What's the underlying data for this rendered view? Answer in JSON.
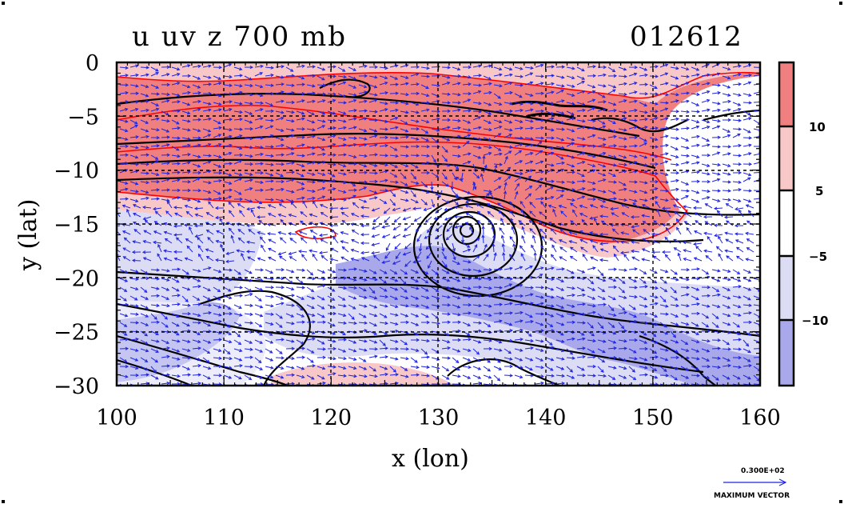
{
  "title": {
    "variables": "u uv z 700 mb",
    "time": "012612"
  },
  "axes": {
    "xlabel": "x (lon)",
    "ylabel": "y (lat)",
    "xlim": [
      100,
      160
    ],
    "ylim": [
      -30,
      0
    ],
    "xticks": [
      "100",
      "110",
      "120",
      "130",
      "140",
      "150",
      "160"
    ],
    "yticks": [
      "0",
      "−5",
      "−10",
      "−15",
      "−20",
      "−25",
      "−30"
    ],
    "grid": "dashed"
  },
  "colorbar": {
    "ticks": [
      "10",
      "5",
      "−5",
      "−10"
    ],
    "colors": [
      "#f08080",
      "#f8c8c8",
      "#ffffff",
      "#dcdcf5",
      "#a8a8ea"
    ]
  },
  "reference_vector": {
    "value": "0.300E+02",
    "label": "MAXIMUM VECTOR"
  },
  "colors": {
    "strong_positive": "#f08080",
    "weak_positive": "#f8c8c8",
    "weak_negative": "#dcdcf5",
    "strong_negative": "#a8a8ea",
    "vectors": "#1e24e0",
    "coastline": "#ff0000"
  },
  "low_center": {
    "lon": 132.8,
    "lat": -15.8
  }
}
